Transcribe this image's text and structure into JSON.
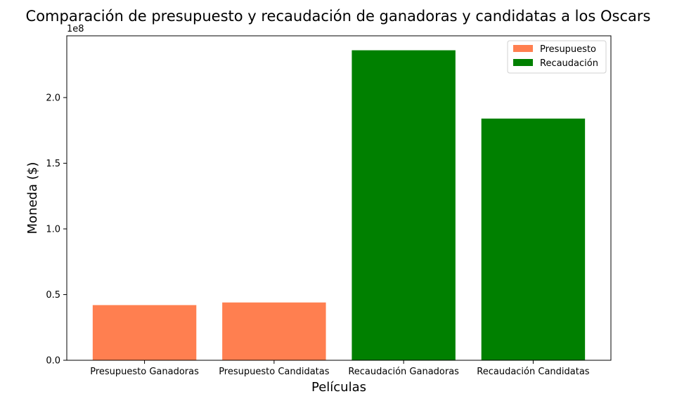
{
  "chart_data": {
    "type": "bar",
    "title": "Comparación de presupuesto y recaudación de ganadoras y candidatas a los Oscars",
    "xlabel": "Películas",
    "ylabel": "Moneda ($)",
    "y_offset_label": "1e8",
    "ylim": [
      0,
      247000000
    ],
    "yticks": [
      {
        "value": 0,
        "label": "0.0"
      },
      {
        "value": 50000000,
        "label": "0.5"
      },
      {
        "value": 100000000,
        "label": "1.0"
      },
      {
        "value": 150000000,
        "label": "1.5"
      },
      {
        "value": 200000000,
        "label": "2.0"
      }
    ],
    "categories": [
      "Presupuesto Ganadoras",
      "Presupuesto Candidatas",
      "Recaudación Ganadoras",
      "Recaudación Candidatas"
    ],
    "values": [
      42000000,
      44000000,
      236000000,
      184000000
    ],
    "bar_series": [
      "Presupuesto",
      "Presupuesto",
      "Recaudación",
      "Recaudación"
    ],
    "legend": [
      {
        "label": "Presupuesto",
        "color": "#ff7f50"
      },
      {
        "label": "Recaudación",
        "color": "#008000"
      }
    ],
    "legend_position": "top-right",
    "grid": false
  }
}
